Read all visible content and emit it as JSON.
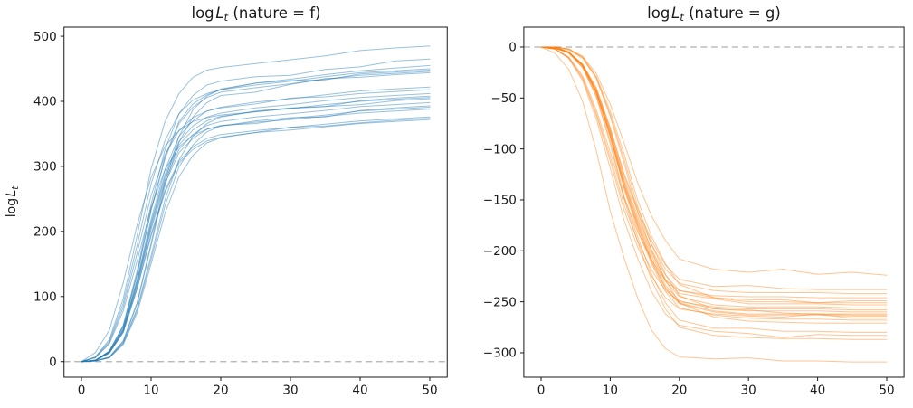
{
  "figure": {
    "background": "#ffffff"
  },
  "chart_data": [
    {
      "type": "line",
      "title": "log L_t (nature = f)",
      "title_parts": {
        "prefix": "log",
        "symbol": "L",
        "subscript": "t",
        "suffix": "(nature = f)"
      },
      "ylabel": "log L_t",
      "ylabel_parts": {
        "prefix": "log",
        "symbol": "L",
        "subscript": "t"
      },
      "xlim": [
        -2.5,
        52.5
      ],
      "ylim": [
        -24,
        514
      ],
      "xticks": [
        0,
        10,
        20,
        30,
        40,
        50
      ],
      "yticks": [
        0,
        100,
        200,
        300,
        400,
        500
      ],
      "zero_line_y": 0,
      "line_color": "#1f77b4",
      "line_opacity": 0.45,
      "zero_line_color": "#b0b0b0",
      "grid": false,
      "legend": "none",
      "x": [
        0,
        2,
        4,
        6,
        8,
        10,
        12,
        14,
        16,
        18,
        20,
        25,
        30,
        35,
        40,
        45,
        50
      ],
      "series": [
        [
          0,
          7,
          34,
          97,
          194,
          296,
          369,
          412,
          437,
          448,
          452,
          458,
          464,
          470,
          478,
          482,
          485
        ],
        [
          0,
          2,
          16,
          56,
          140,
          242,
          326,
          381,
          409,
          425,
          431,
          438,
          440,
          449,
          453,
          462,
          465
        ],
        [
          0,
          1,
          7,
          32,
          91,
          182,
          278,
          346,
          387,
          408,
          419,
          428,
          434,
          441,
          447,
          451,
          455
        ],
        [
          0,
          2,
          16,
          54,
          135,
          234,
          315,
          369,
          396,
          410,
          418,
          425,
          431,
          438,
          444,
          447,
          450
        ],
        [
          0,
          7,
          31,
          90,
          179,
          273,
          340,
          381,
          402,
          412,
          418,
          428,
          432,
          433,
          442,
          445,
          448
        ],
        [
          0,
          2,
          16,
          54,
          134,
          232,
          312,
          366,
          391,
          406,
          414,
          421,
          427,
          434,
          440,
          443,
          446
        ],
        [
          0,
          1,
          7,
          31,
          89,
          178,
          271,
          337,
          376,
          398,
          409,
          414,
          426,
          435,
          437,
          441,
          444
        ],
        [
          0,
          2,
          15,
          51,
          127,
          219,
          295,
          346,
          370,
          385,
          391,
          399,
          404,
          410,
          416,
          419,
          422
        ],
        [
          0,
          6,
          29,
          84,
          167,
          255,
          318,
          355,
          375,
          385,
          390,
          396,
          405,
          407,
          412,
          415,
          418
        ],
        [
          0,
          2,
          14,
          49,
          124,
          214,
          288,
          338,
          362,
          376,
          382,
          390,
          395,
          401,
          406,
          409,
          412
        ],
        [
          0,
          1,
          6,
          29,
          82,
          163,
          249,
          310,
          346,
          366,
          376,
          385,
          390,
          392,
          401,
          405,
          408
        ],
        [
          0,
          2,
          14,
          49,
          122,
          211,
          284,
          333,
          356,
          370,
          377,
          384,
          389,
          395,
          400,
          403,
          406
        ],
        [
          0,
          14,
          48,
          121,
          210,
          283,
          331,
          355,
          369,
          375,
          379,
          384,
          389,
          392,
          395,
          401,
          404
        ],
        [
          0,
          2,
          14,
          48,
          119,
          207,
          279,
          326,
          349,
          363,
          369,
          376,
          381,
          386,
          392,
          395,
          398
        ],
        [
          0,
          1,
          6,
          28,
          79,
          157,
          240,
          299,
          333,
          353,
          362,
          370,
          375,
          376,
          386,
          390,
          393
        ],
        [
          0,
          2,
          14,
          47,
          117,
          203,
          274,
          321,
          343,
          357,
          363,
          366,
          374,
          379,
          385,
          388,
          391
        ],
        [
          0,
          6,
          27,
          78,
          155,
          237,
          295,
          330,
          348,
          357,
          362,
          368,
          372,
          377,
          382,
          385,
          388
        ],
        [
          0,
          2,
          13,
          45,
          113,
          196,
          263,
          308,
          330,
          343,
          349,
          355,
          360,
          365,
          370,
          373,
          376
        ],
        [
          0,
          1,
          6,
          26,
          75,
          150,
          228,
          284,
          317,
          336,
          344,
          352,
          360,
          362,
          367,
          371,
          374
        ],
        [
          0,
          2,
          13,
          45,
          112,
          193,
          260,
          305,
          326,
          339,
          345,
          352,
          356,
          361,
          366,
          369,
          372
        ]
      ]
    },
    {
      "type": "line",
      "title": "log L_t (nature = g)",
      "title_parts": {
        "prefix": "log",
        "symbol": "L",
        "subscript": "t",
        "suffix": "(nature = g)"
      },
      "ylabel": "",
      "xlim": [
        -2.5,
        52.5
      ],
      "ylim": [
        -324,
        19.5
      ],
      "xticks": [
        0,
        10,
        20,
        30,
        40,
        50
      ],
      "yticks": [
        0,
        -50,
        -100,
        -150,
        -200,
        -250,
        -300
      ],
      "zero_line_y": 0,
      "line_color": "#ff7f0e",
      "line_opacity": 0.45,
      "zero_line_color": "#b0b0b0",
      "grid": false,
      "legend": "none",
      "x": [
        0,
        2,
        4,
        6,
        8,
        10,
        12,
        14,
        16,
        18,
        20,
        25,
        30,
        35,
        40,
        45,
        50
      ],
      "series": [
        [
          0,
          0,
          -2,
          -9,
          -26,
          -56,
          -94,
          -134,
          -166,
          -190,
          -208,
          -218,
          -221,
          -218,
          -223,
          -221,
          -224
        ],
        [
          0,
          0,
          -5,
          -17,
          -40,
          -79,
          -124,
          -159,
          -190,
          -214,
          -228,
          -235,
          -234,
          -237,
          -238,
          -238,
          -238
        ],
        [
          0,
          0,
          -5,
          -17,
          -41,
          -80,
          -126,
          -162,
          -194,
          -218,
          -232,
          -239,
          -241,
          -241,
          -241,
          -242,
          -242
        ],
        [
          0,
          -2,
          -10,
          -28,
          -62,
          -103,
          -148,
          -182,
          -209,
          -229,
          -239,
          -244,
          -245,
          -245,
          -246,
          -246,
          -246
        ],
        [
          0,
          0,
          -5,
          -17,
          -42,
          -82,
          -129,
          -167,
          -199,
          -224,
          -239,
          -246,
          -248,
          -248,
          -251,
          -249,
          -249
        ],
        [
          0,
          0,
          -2,
          -10,
          -29,
          -63,
          -105,
          -151,
          -186,
          -213,
          -233,
          -246,
          -250,
          -250,
          -251,
          -251,
          -251
        ],
        [
          0,
          -1,
          -5,
          -18,
          -43,
          -83,
          -132,
          -170,
          -202,
          -228,
          -242,
          -247,
          -252,
          -252,
          -252,
          -253,
          -253
        ],
        [
          0,
          -1,
          -5,
          -18,
          -44,
          -84,
          -133,
          -172,
          -205,
          -230,
          -245,
          -253,
          -255,
          -255,
          -255,
          -256,
          -256
        ],
        [
          0,
          -2,
          -10,
          -30,
          -65,
          -108,
          -155,
          -191,
          -219,
          -239,
          -250,
          -255,
          -257,
          -257,
          -257,
          -258,
          -258
        ],
        [
          0,
          -1,
          -5,
          -18,
          -44,
          -86,
          -135,
          -174,
          -208,
          -234,
          -249,
          -257,
          -259,
          -259,
          -259,
          -260,
          -260
        ],
        [
          0,
          0,
          -2,
          -10,
          -30,
          -66,
          -110,
          -157,
          -194,
          -223,
          -244,
          -257,
          -258,
          -261,
          -262,
          -262,
          -262
        ],
        [
          0,
          -1,
          -5,
          -18,
          -45,
          -87,
          -137,
          -176,
          -210,
          -236,
          -251,
          -259,
          -262,
          -262,
          -262,
          -263,
          -263
        ],
        [
          0,
          -1,
          -5,
          -18,
          -45,
          -87,
          -137,
          -177,
          -211,
          -237,
          -252,
          -260,
          -263,
          -263,
          -263,
          -264,
          -264
        ],
        [
          0,
          -2,
          -11,
          -31,
          -67,
          -112,
          -160,
          -197,
          -225,
          -246,
          -257,
          -262,
          -264,
          -265,
          -262,
          -266,
          -266
        ],
        [
          0,
          -1,
          -5,
          -19,
          -46,
          -88,
          -139,
          -180,
          -213,
          -240,
          -256,
          -263,
          -266,
          -267,
          -267,
          -268,
          -268
        ],
        [
          0,
          0,
          -3,
          -11,
          -31,
          -68,
          -114,
          -163,
          -200,
          -229,
          -251,
          -265,
          -269,
          -270,
          -271,
          -271,
          -271
        ],
        [
          0,
          -1,
          -6,
          -20,
          -48,
          -92,
          -146,
          -187,
          -223,
          -251,
          -268,
          -276,
          -276,
          -279,
          -279,
          -280,
          -280
        ],
        [
          0,
          -2,
          -11,
          -33,
          -71,
          -119,
          -170,
          -208,
          -240,
          -262,
          -273,
          -279,
          -281,
          -285,
          -282,
          -283,
          -283
        ],
        [
          0,
          -1,
          -6,
          -20,
          -49,
          -95,
          -149,
          -192,
          -229,
          -257,
          -275,
          -283,
          -285,
          -286,
          -286,
          -287,
          -287
        ],
        [
          0,
          -6,
          -22,
          -53,
          -102,
          -161,
          -207,
          -247,
          -278,
          -296,
          -304,
          -306,
          -305,
          -308,
          -308,
          -309,
          -309
        ]
      ]
    }
  ]
}
